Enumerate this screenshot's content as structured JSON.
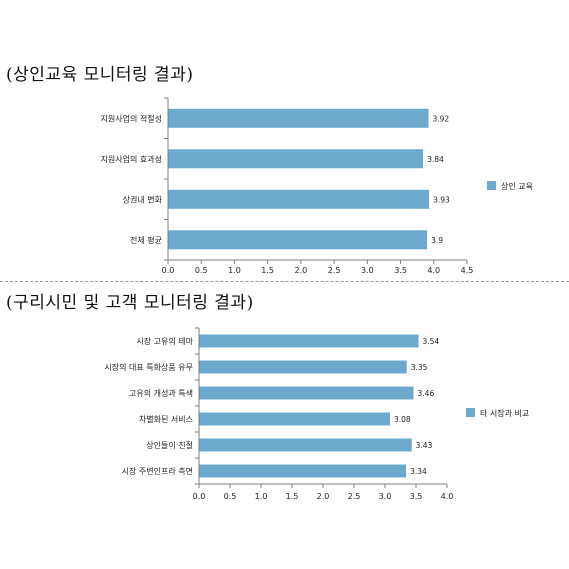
{
  "headings": {
    "merchant": "(상인교육 모니터링 결과)",
    "residents": "(구리시민 및 고객 모니터링 결과)"
  },
  "chart_data": [
    {
      "type": "bar",
      "orientation": "horizontal",
      "categories": [
        "지원사업의 적절성",
        "지원사업의 효과성",
        "상권내 변화",
        "전체 평균"
      ],
      "series": [
        {
          "name": "상인 교육",
          "values": [
            3.92,
            3.84,
            3.93,
            3.9
          ]
        }
      ],
      "value_labels": [
        "3.92",
        "3.84",
        "3.93",
        "3.9"
      ],
      "xlim": [
        0,
        4.5
      ],
      "ticks": [
        "0.0",
        "0.5",
        "1.0",
        "1.5",
        "2.0",
        "2.5",
        "3.0",
        "3.5",
        "4.0",
        "4.5"
      ],
      "grid": false,
      "legend_position": "right",
      "bar_color": "#6ca9cd"
    },
    {
      "type": "bar",
      "orientation": "horizontal",
      "categories": [
        "시장 고유의 테마",
        "시장의 대표 특화상품 유무",
        "고유의 개성과 특색",
        "차별화된 서비스",
        "상인들이 친절",
        "시장 주변인프라 측면"
      ],
      "series": [
        {
          "name": "타 시장과 비교",
          "values": [
            3.54,
            3.35,
            3.46,
            3.08,
            3.43,
            3.34
          ]
        }
      ],
      "value_labels": [
        "3.54",
        "3.35",
        "3.46",
        "3.08",
        "3.43",
        "3.34"
      ],
      "xlim": [
        0,
        4.0
      ],
      "ticks": [
        "0.0",
        "0.5",
        "1.0",
        "1.5",
        "2.0",
        "2.5",
        "3.0",
        "3.5",
        "4.0"
      ],
      "grid": false,
      "legend_position": "right",
      "bar_color": "#6ca9cd"
    }
  ]
}
